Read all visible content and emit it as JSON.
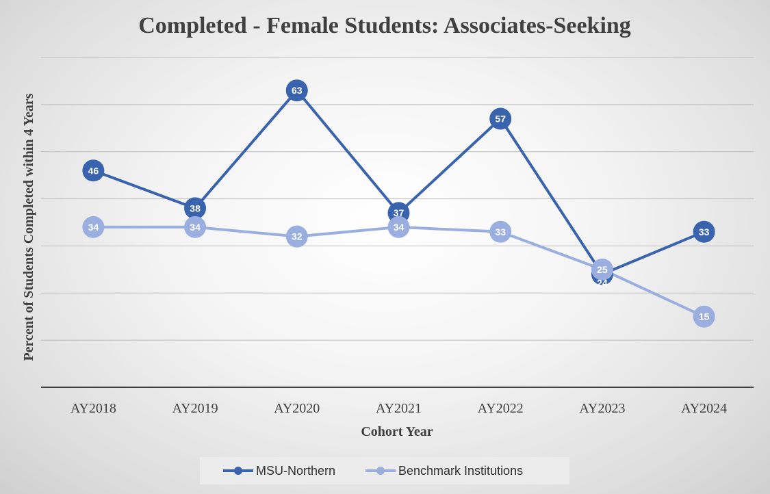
{
  "chart_data": {
    "type": "line",
    "title": "Completed - Female Students: Associates-Seeking",
    "xlabel": "Cohort Year",
    "ylabel": "Percent of Students Completed within 4 Years",
    "categories": [
      "AY2018",
      "AY2019",
      "AY2020",
      "AY2021",
      "AY2022",
      "AY2023",
      "AY2024"
    ],
    "ylim": [
      0,
      70
    ],
    "grid": true,
    "legend_position": "bottom",
    "series": [
      {
        "name": "MSU-Northern",
        "color": "#3a63ad",
        "values": [
          46,
          38,
          63,
          37,
          57,
          24,
          33
        ]
      },
      {
        "name": "Benchmark Institutions",
        "color": "#9aaee0",
        "values": [
          34,
          34,
          32,
          34,
          33,
          25,
          15
        ]
      }
    ]
  }
}
